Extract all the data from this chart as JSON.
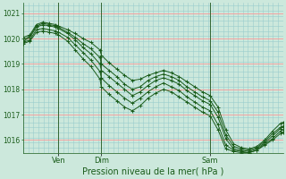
{
  "title": "Pression niveau de la mer( hPa )",
  "bg_color": "#cce8dc",
  "grid_color_major": "#ff9999",
  "grid_color_minor": "#99cccc",
  "line_color": "#1a5c1a",
  "ylim": [
    1015.5,
    1021.4
  ],
  "yticks": [
    1016,
    1017,
    1018,
    1019,
    1020,
    1021
  ],
  "vline_color": "#336633",
  "vline_positions": [
    0.135,
    0.3,
    0.72
  ],
  "vline_labels": [
    "Ven",
    "Dim",
    "Sam"
  ],
  "series": [
    [
      0.0,
      1020.05,
      0.025,
      1020.15,
      0.05,
      1020.55,
      0.075,
      1020.65,
      0.1,
      1020.6,
      0.125,
      1020.55,
      0.135,
      1020.5,
      0.17,
      1020.35,
      0.2,
      1020.2,
      0.23,
      1020.0,
      0.26,
      1019.85,
      0.295,
      1019.55,
      0.3,
      1019.35,
      0.33,
      1019.05,
      0.36,
      1018.8,
      0.39,
      1018.55,
      0.42,
      1018.35,
      0.45,
      1018.4,
      0.48,
      1018.55,
      0.51,
      1018.65,
      0.54,
      1018.75,
      0.57,
      1018.65,
      0.6,
      1018.5,
      0.63,
      1018.3,
      0.66,
      1018.1,
      0.69,
      1017.9,
      0.72,
      1017.75,
      0.75,
      1017.3,
      0.78,
      1016.4,
      0.81,
      1015.85,
      0.84,
      1015.7,
      0.87,
      1015.65,
      0.9,
      1015.75,
      0.93,
      1016.0,
      0.96,
      1016.35,
      0.99,
      1016.65,
      1.0,
      1016.7
    ],
    [
      0.0,
      1019.95,
      0.025,
      1020.1,
      0.05,
      1020.5,
      0.075,
      1020.6,
      0.1,
      1020.55,
      0.125,
      1020.5,
      0.135,
      1020.45,
      0.17,
      1020.25,
      0.2,
      1020.05,
      0.23,
      1019.8,
      0.26,
      1019.6,
      0.295,
      1019.25,
      0.3,
      1019.0,
      0.33,
      1018.75,
      0.36,
      1018.5,
      0.39,
      1018.2,
      0.42,
      1018.0,
      0.45,
      1018.1,
      0.48,
      1018.35,
      0.51,
      1018.5,
      0.54,
      1018.6,
      0.57,
      1018.5,
      0.6,
      1018.35,
      0.63,
      1018.1,
      0.66,
      1017.9,
      0.69,
      1017.7,
      0.72,
      1017.55,
      0.75,
      1017.1,
      0.78,
      1016.2,
      0.81,
      1015.75,
      0.84,
      1015.65,
      0.87,
      1015.6,
      0.9,
      1015.7,
      0.93,
      1015.95,
      0.96,
      1016.25,
      0.99,
      1016.5,
      1.0,
      1016.55
    ],
    [
      0.0,
      1019.9,
      0.025,
      1020.05,
      0.05,
      1020.45,
      0.075,
      1020.55,
      0.1,
      1020.5,
      0.125,
      1020.45,
      0.135,
      1020.4,
      0.17,
      1020.2,
      0.2,
      1019.95,
      0.23,
      1019.65,
      0.26,
      1019.4,
      0.295,
      1019.0,
      0.3,
      1018.75,
      0.33,
      1018.5,
      0.36,
      1018.25,
      0.39,
      1018.0,
      0.42,
      1017.75,
      0.45,
      1017.9,
      0.48,
      1018.15,
      0.51,
      1018.35,
      0.54,
      1018.45,
      0.57,
      1018.35,
      0.6,
      1018.2,
      0.63,
      1017.95,
      0.66,
      1017.75,
      0.69,
      1017.55,
      0.72,
      1017.4,
      0.75,
      1016.9,
      0.78,
      1016.05,
      0.81,
      1015.65,
      0.84,
      1015.6,
      0.87,
      1015.55,
      0.9,
      1015.65,
      0.93,
      1015.9,
      0.96,
      1016.15,
      0.99,
      1016.45,
      1.0,
      1016.5
    ],
    [
      0.0,
      1019.85,
      0.025,
      1019.95,
      0.05,
      1020.35,
      0.075,
      1020.4,
      0.1,
      1020.35,
      0.125,
      1020.3,
      0.135,
      1020.25,
      0.17,
      1020.05,
      0.2,
      1019.75,
      0.23,
      1019.45,
      0.26,
      1019.15,
      0.295,
      1018.7,
      0.3,
      1018.45,
      0.33,
      1018.15,
      0.36,
      1017.9,
      0.39,
      1017.65,
      0.42,
      1017.45,
      0.45,
      1017.65,
      0.48,
      1017.9,
      0.51,
      1018.1,
      0.54,
      1018.25,
      0.57,
      1018.1,
      0.6,
      1017.95,
      0.63,
      1017.7,
      0.66,
      1017.5,
      0.69,
      1017.3,
      0.72,
      1017.15,
      0.75,
      1016.6,
      0.78,
      1015.8,
      0.81,
      1015.6,
      0.84,
      1015.55,
      0.87,
      1015.5,
      0.9,
      1015.6,
      0.93,
      1015.85,
      0.96,
      1016.05,
      0.99,
      1016.35,
      1.0,
      1016.4
    ],
    [
      0.0,
      1019.8,
      0.025,
      1019.9,
      0.05,
      1020.25,
      0.075,
      1020.3,
      0.1,
      1020.25,
      0.125,
      1020.2,
      0.135,
      1020.15,
      0.17,
      1019.9,
      0.2,
      1019.55,
      0.23,
      1019.2,
      0.26,
      1018.9,
      0.295,
      1018.4,
      0.3,
      1018.1,
      0.33,
      1017.8,
      0.36,
      1017.55,
      0.39,
      1017.3,
      0.42,
      1017.15,
      0.45,
      1017.35,
      0.48,
      1017.65,
      0.51,
      1017.85,
      0.54,
      1018.0,
      0.57,
      1017.9,
      0.6,
      1017.7,
      0.63,
      1017.5,
      0.66,
      1017.3,
      0.69,
      1017.1,
      0.72,
      1016.95,
      0.75,
      1016.4,
      0.78,
      1015.65,
      0.81,
      1015.55,
      0.84,
      1015.5,
      0.87,
      1015.5,
      0.9,
      1015.6,
      0.93,
      1015.8,
      0.96,
      1016.0,
      0.99,
      1016.25,
      1.0,
      1016.3
    ]
  ]
}
